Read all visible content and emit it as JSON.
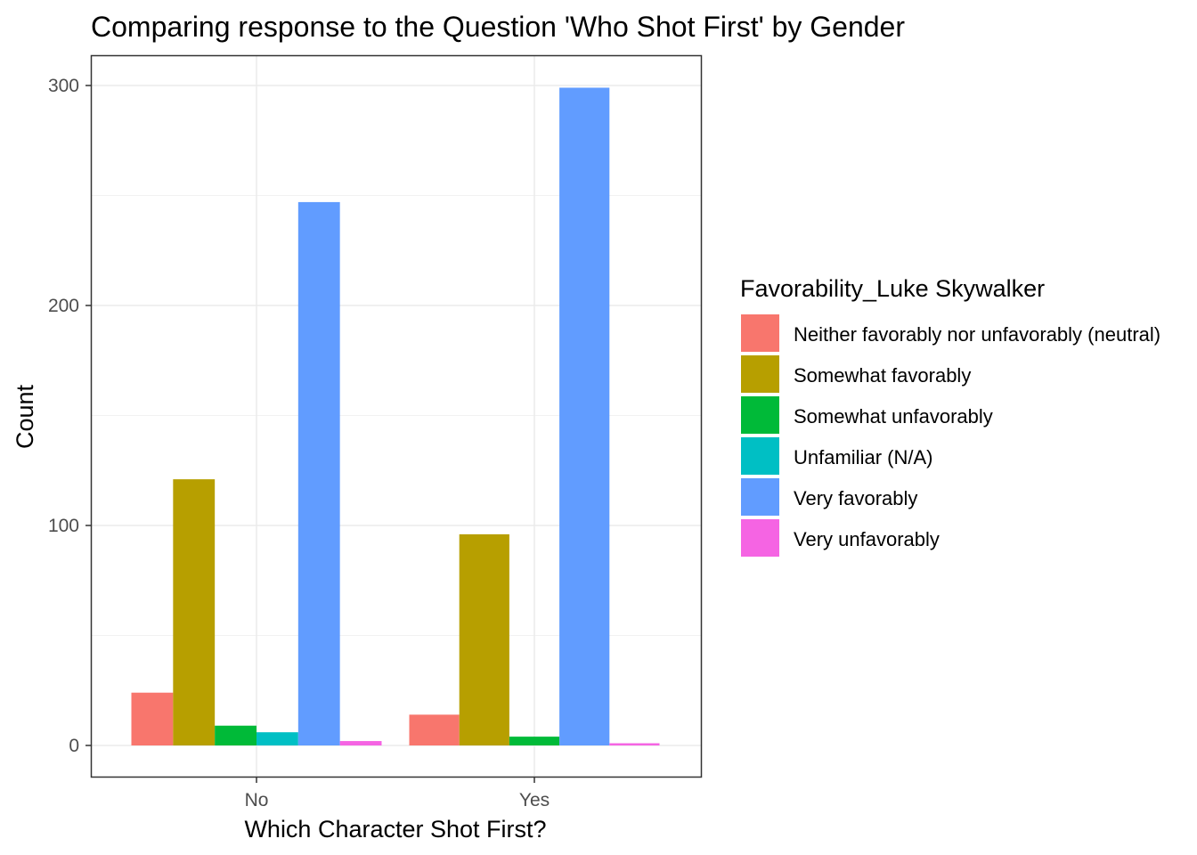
{
  "chart_data": {
    "type": "bar",
    "title": "Comparing response to the Question 'Who Shot First' by Gender",
    "xlabel": "Which Character Shot First?",
    "ylabel": "Count",
    "categories": [
      "No",
      "Yes"
    ],
    "ylim": [
      -15,
      320
    ],
    "yticks": [
      0,
      100,
      200,
      300
    ],
    "grid": true,
    "legend": {
      "title": "Favorability_Luke Skywalker",
      "position": "right"
    },
    "series": [
      {
        "name": "Neither favorably nor unfavorably (neutral)",
        "color": "#F8766D",
        "values": [
          24,
          14
        ]
      },
      {
        "name": "Somewhat favorably",
        "color": "#B79F00",
        "values": [
          121,
          96
        ]
      },
      {
        "name": "Somewhat unfavorably",
        "color": "#00BA38",
        "values": [
          9,
          4
        ]
      },
      {
        "name": "Unfamiliar (N/A)",
        "color": "#00BFC4",
        "values": [
          6,
          0
        ]
      },
      {
        "name": "Very favorably",
        "color": "#619CFF",
        "values": [
          247,
          299
        ]
      },
      {
        "name": "Very unfavorably",
        "color": "#F564E3",
        "values": [
          2,
          1
        ]
      }
    ],
    "present": [
      [
        true,
        true,
        true,
        true,
        true,
        true
      ],
      [
        true,
        true,
        true,
        false,
        true,
        true
      ]
    ]
  }
}
